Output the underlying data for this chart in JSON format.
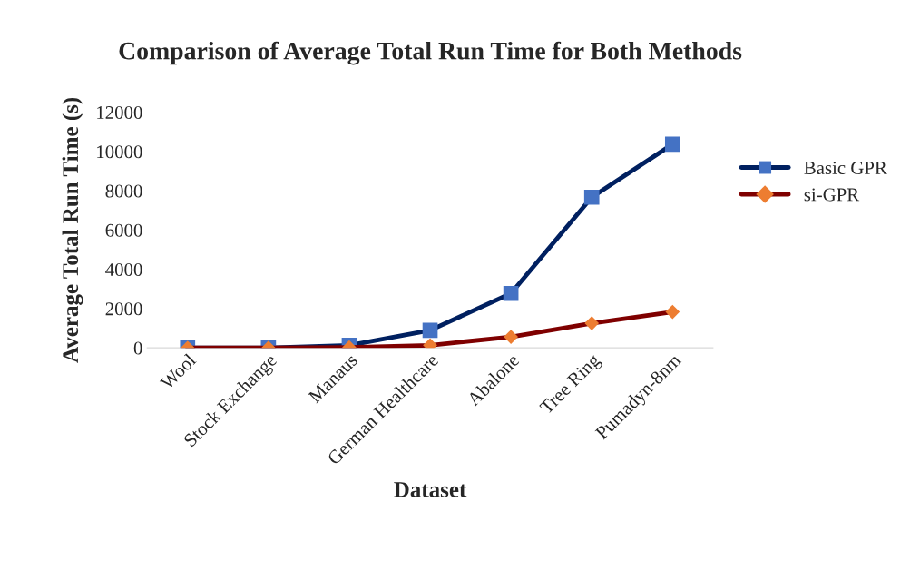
{
  "chart_data": {
    "type": "line",
    "title": "Comparison of Average Total Run Time for Both Methods",
    "xlabel": "Dataset",
    "ylabel": "Average Total Run Time (s)",
    "categories": [
      "Wool",
      "Stock Exchange",
      "Manaus",
      "German Healthcare",
      "Abalone",
      "Tree Ring",
      "Pumadyn-8nm"
    ],
    "series": [
      {
        "name": "Basic GPR",
        "color": "#002060",
        "marker": "square",
        "colors": [
          "#4472c4",
          "#4472c4",
          "#4472c4",
          "#4472c4",
          "#4472c4",
          "#4472c4",
          "#4472c4"
        ],
        "values": [
          0,
          0,
          130,
          890,
          2770,
          7670,
          10370
        ]
      },
      {
        "name": "si-GPR",
        "color": "#7f0000",
        "marker": "diamond",
        "colors": [
          "#ed7d31",
          "#ed7d31",
          "#ed7d31",
          "#ed7d31",
          "#ed7d31",
          "#ed7d31",
          "#ed7d31"
        ],
        "values": [
          0,
          0,
          20,
          130,
          560,
          1250,
          1830
        ]
      }
    ],
    "ylim": [
      0,
      12000
    ],
    "yticks": [
      0,
      2000,
      4000,
      6000,
      8000,
      10000,
      12000
    ],
    "grid": false,
    "legend": "right",
    "line_style": "solid"
  }
}
